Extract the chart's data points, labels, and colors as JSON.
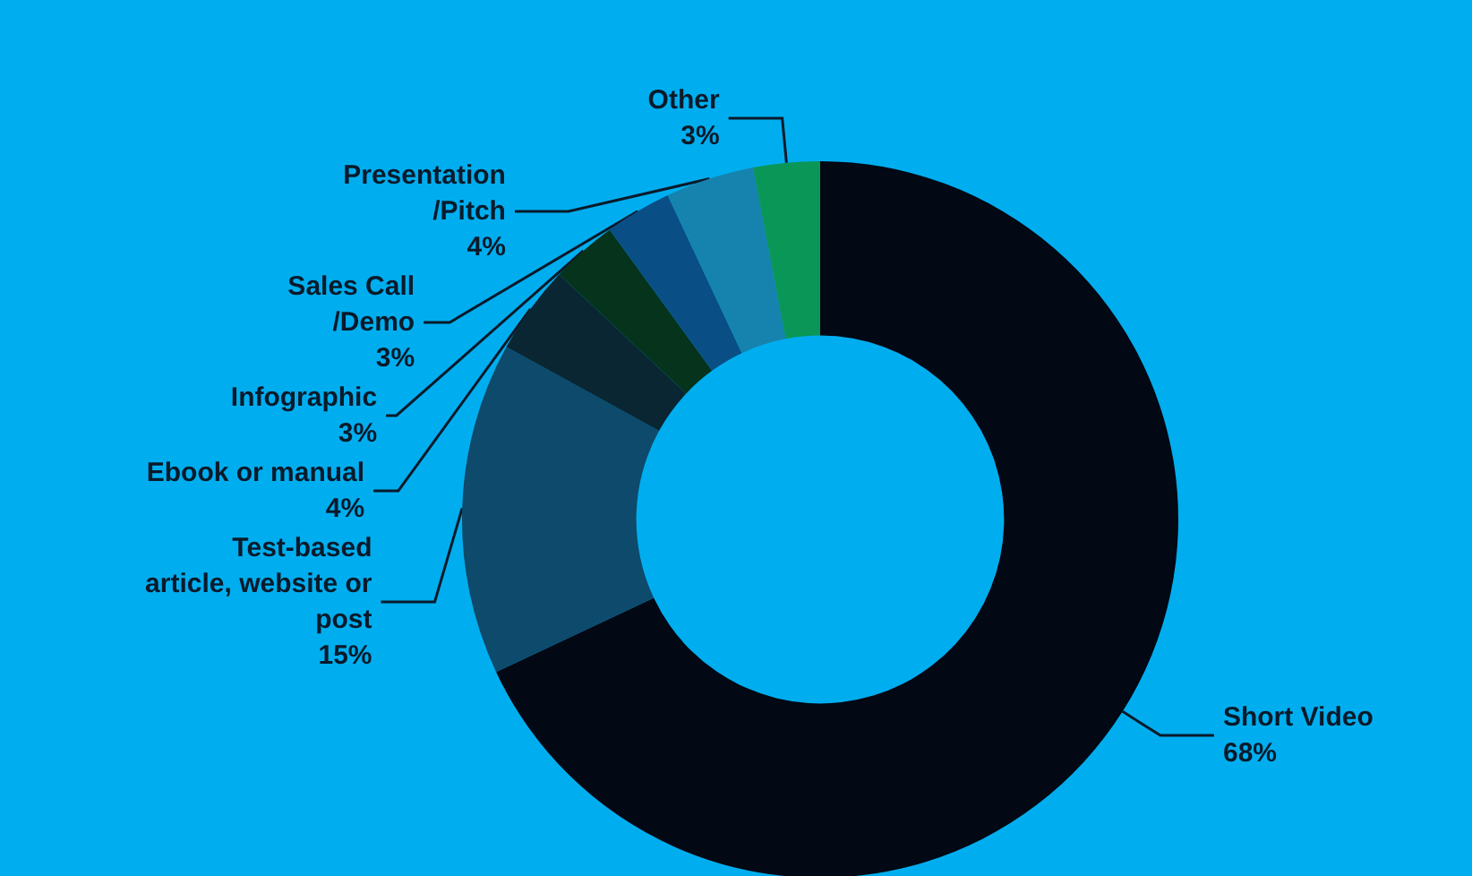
{
  "chart_data": {
    "type": "donut",
    "categories": [
      "Short Video",
      "Test-based\narticle, website or\npost",
      "Ebook or manual",
      "Infographic",
      "Sales Call\n/Demo",
      "Presentation\n/Pitch",
      "Other"
    ],
    "values": [
      68,
      15,
      4,
      3,
      3,
      4,
      3
    ],
    "value_labels": [
      "68%",
      "15%",
      "4%",
      "3%",
      "3%",
      "4%",
      "3%"
    ],
    "colors": [
      "#020814",
      "#0d4a6b",
      "#0a2633",
      "#06331c",
      "#0a4e86",
      "#1683ae",
      "#0a9656"
    ],
    "legend": false
  }
}
